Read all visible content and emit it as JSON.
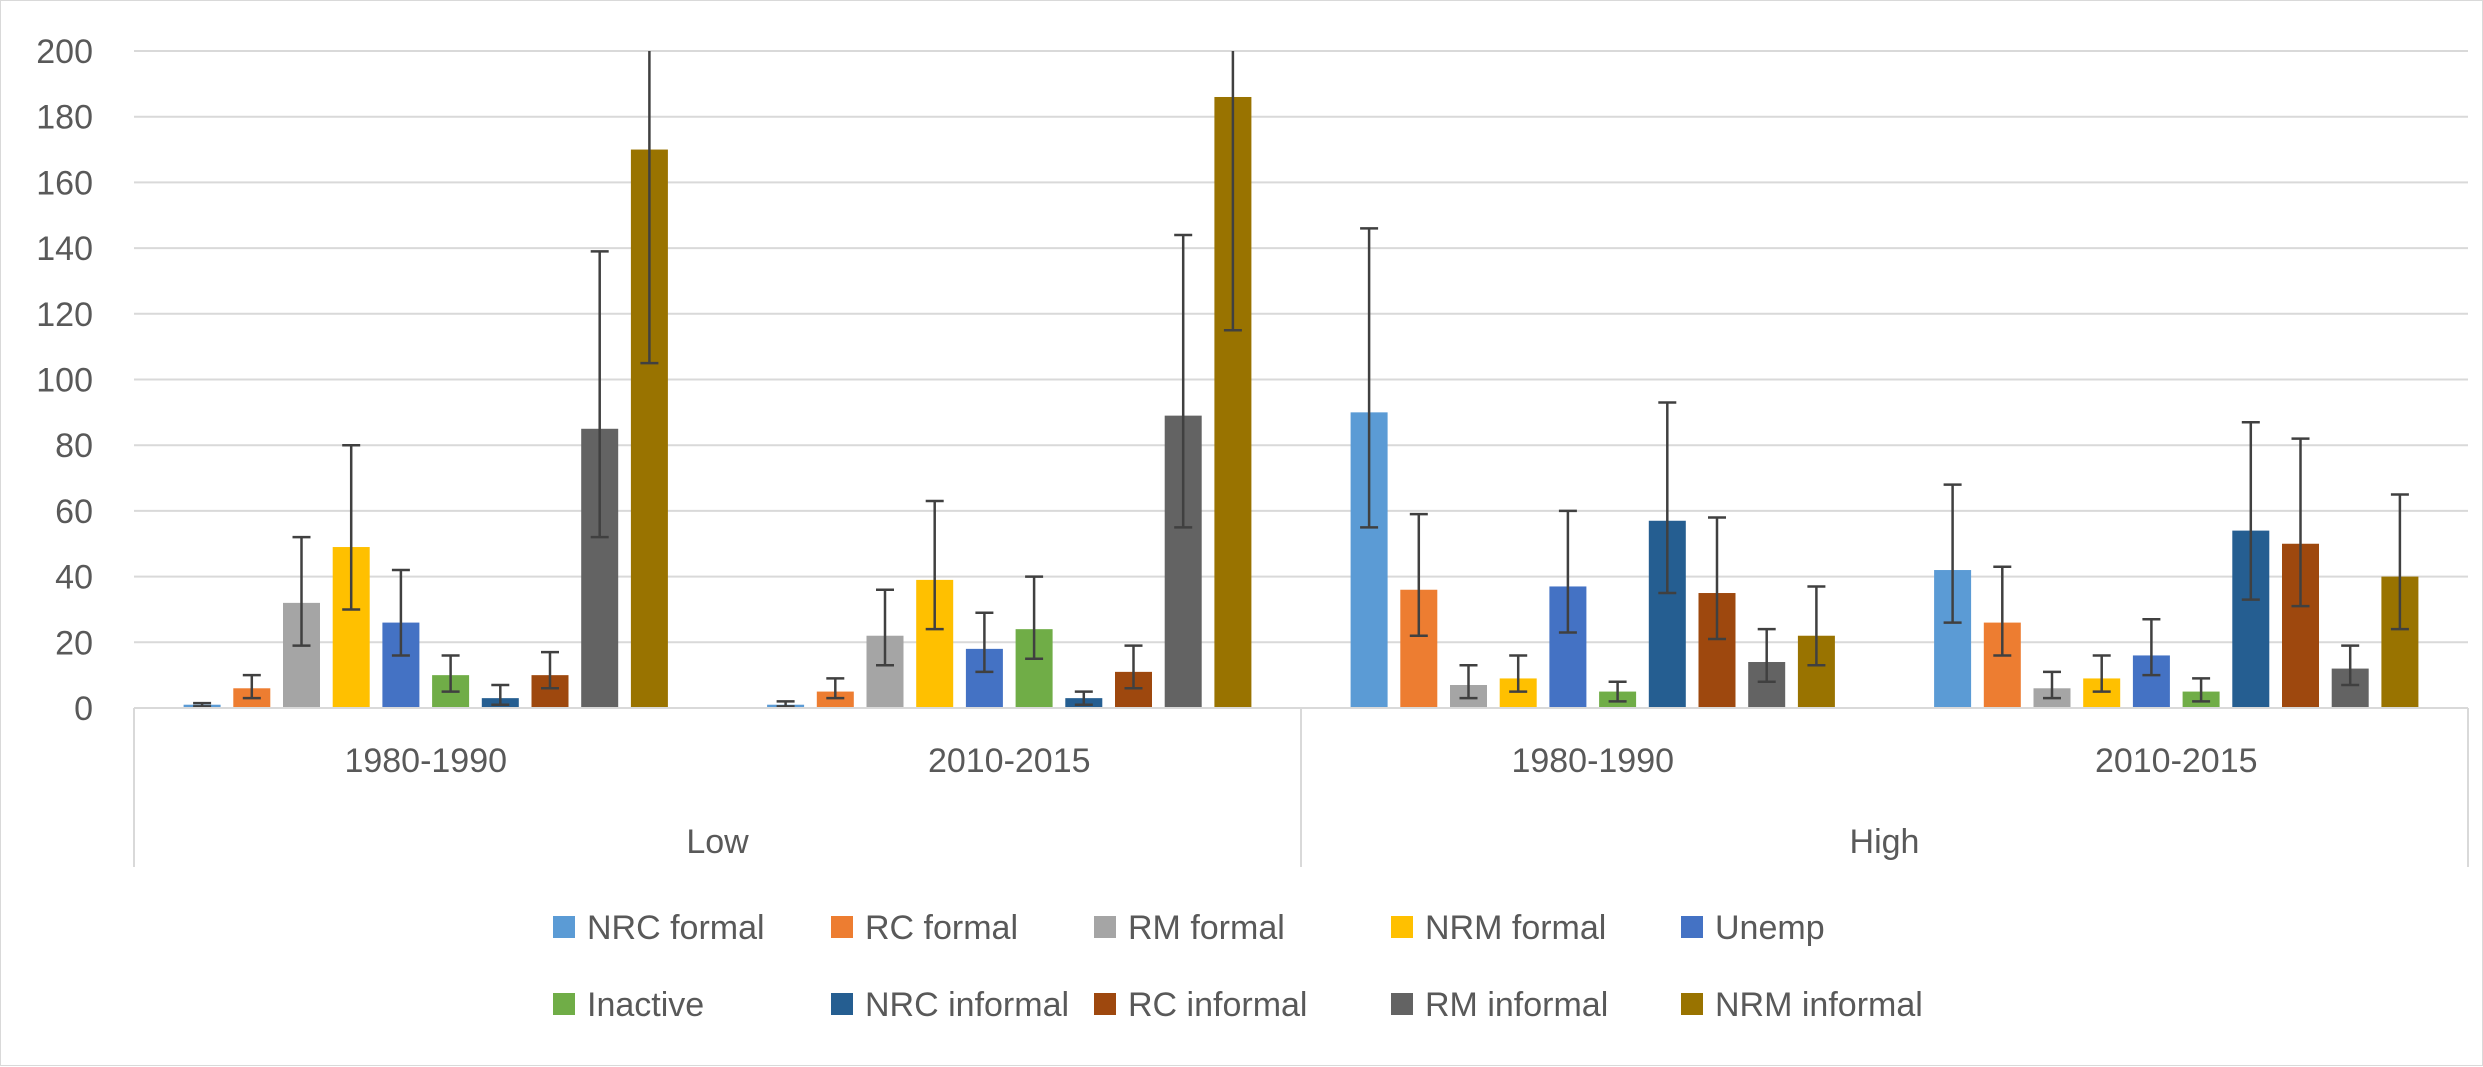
{
  "chart_data": {
    "type": "bar",
    "title": "",
    "xlabel": "",
    "ylabel": "",
    "ylim": [
      0,
      200
    ],
    "yticks": [
      "0",
      "20",
      "40",
      "60",
      "80",
      "100",
      "120",
      "140",
      "160",
      "180",
      "200"
    ],
    "grid": true,
    "legend_position": "bottom",
    "groups": [
      {
        "label": "Low",
        "subcategories": [
          "1980-1990",
          "2010-2015"
        ]
      },
      {
        "label": "High",
        "subcategories": [
          "1980-1990",
          "2010-2015"
        ]
      }
    ],
    "categories": [
      "Low 1980-1990",
      "Low 2010-2015",
      "High 1980-1990",
      "High 2010-2015"
    ],
    "series": [
      {
        "name": "NRC formal",
        "color": "#5b9bd5",
        "values": [
          1,
          1,
          90,
          42
        ],
        "error_low": [
          0.5,
          0.5,
          55,
          26
        ],
        "error_high": [
          1.5,
          2,
          146,
          68
        ]
      },
      {
        "name": "RC formal",
        "color": "#ed7d31",
        "values": [
          6,
          5,
          36,
          26
        ],
        "error_low": [
          3,
          3,
          22,
          16
        ],
        "error_high": [
          10,
          9,
          59,
          43
        ]
      },
      {
        "name": "RM formal",
        "color": "#a5a5a5",
        "values": [
          32,
          22,
          7,
          6
        ],
        "error_low": [
          19,
          13,
          3,
          3
        ],
        "error_high": [
          52,
          36,
          13,
          11
        ]
      },
      {
        "name": "NRM formal",
        "color": "#ffc000",
        "values": [
          49,
          39,
          9,
          9
        ],
        "error_low": [
          30,
          24,
          5,
          5
        ],
        "error_high": [
          80,
          63,
          16,
          16
        ]
      },
      {
        "name": "Unemp",
        "color": "#4472c4",
        "values": [
          26,
          18,
          37,
          16
        ],
        "error_low": [
          16,
          11,
          23,
          10
        ],
        "error_high": [
          42,
          29,
          60,
          27
        ]
      },
      {
        "name": "Inactive",
        "color": "#70ad47",
        "values": [
          10,
          24,
          5,
          5
        ],
        "error_low": [
          5,
          15,
          2,
          2
        ],
        "error_high": [
          16,
          40,
          8,
          9
        ]
      },
      {
        "name": "NRC informal",
        "color": "#255e91",
        "values": [
          3,
          3,
          57,
          54
        ],
        "error_low": [
          1,
          1,
          35,
          33
        ],
        "error_high": [
          7,
          5,
          93,
          87
        ]
      },
      {
        "name": "RC informal",
        "color": "#9e480e",
        "values": [
          10,
          11,
          35,
          50
        ],
        "error_low": [
          6,
          6,
          21,
          31
        ],
        "error_high": [
          17,
          19,
          58,
          82
        ]
      },
      {
        "name": "RM informal",
        "color": "#636363",
        "values": [
          85,
          89,
          14,
          12
        ],
        "error_low": [
          52,
          55,
          8,
          7
        ],
        "error_high": [
          139,
          144,
          24,
          19
        ]
      },
      {
        "name": "NRM informal",
        "color": "#997300",
        "values": [
          170,
          186,
          22,
          40
        ],
        "error_low": [
          105,
          115,
          13,
          24
        ],
        "error_high": [
          200,
          200,
          37,
          65
        ]
      }
    ]
  }
}
